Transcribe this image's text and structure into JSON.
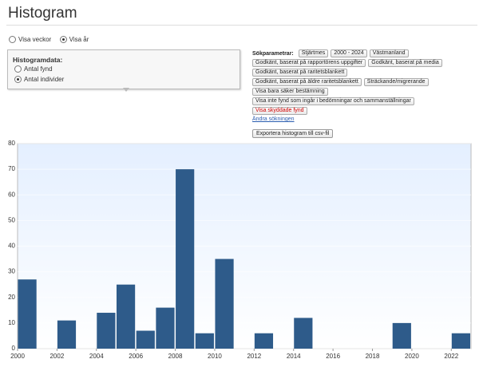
{
  "header": {
    "title": "Histogram"
  },
  "views": [
    "Visa veckor",
    "Visa år"
  ],
  "histogram_box": {
    "title": "Histogramdata:",
    "options": [
      "Antal fynd",
      "Antal individer"
    ]
  },
  "search": {
    "label": "Sökparametrar:",
    "rows": [
      [
        "Stjärtmes",
        "2000 - 2024",
        "Västmanland"
      ],
      [
        "Godkänt, baserat på rapportörens uppgifter",
        "Godkänt, baserat på media"
      ],
      [
        "Godkänt, baserat på raritetsblankett"
      ],
      [
        "Godkänt, baserat på äldre raritetsblankett",
        "Sträckande/migrerande"
      ],
      [
        "Visa bara säker bestämning"
      ],
      [
        "Visa inte fynd som ingår i bedömningar och sammanställningar"
      ],
      [
        "Visa skyddade fynd"
      ]
    ],
    "link": "Ändra sökningen",
    "export": "Exportera histogram till csv-fil"
  },
  "chart_data": {
    "type": "histogram",
    "bins": [
      2000,
      2001,
      2002,
      2003,
      2004,
      2005,
      2006,
      2007,
      2008,
      2009,
      2010,
      2011,
      2012,
      2013,
      2014,
      2015,
      2016,
      2017,
      2018,
      2019,
      2020,
      2021,
      2022,
      2023
    ],
    "values": [
      27,
      0,
      11,
      0,
      14,
      25,
      7,
      16,
      70,
      6,
      35,
      0,
      6,
      0,
      12,
      0,
      0,
      0,
      0,
      10,
      0,
      0,
      6
    ],
    "color": "#2e5b8a",
    "xlim": [
      2000,
      2023
    ],
    "ylim": [
      0,
      80
    ],
    "xticks": [
      2000,
      2002,
      2004,
      2006,
      2008,
      2010,
      2012,
      2014,
      2016,
      2018,
      2020,
      2022
    ],
    "yticks": [
      0,
      10,
      20,
      30,
      40,
      50,
      60,
      70,
      80
    ],
    "grid": true
  }
}
